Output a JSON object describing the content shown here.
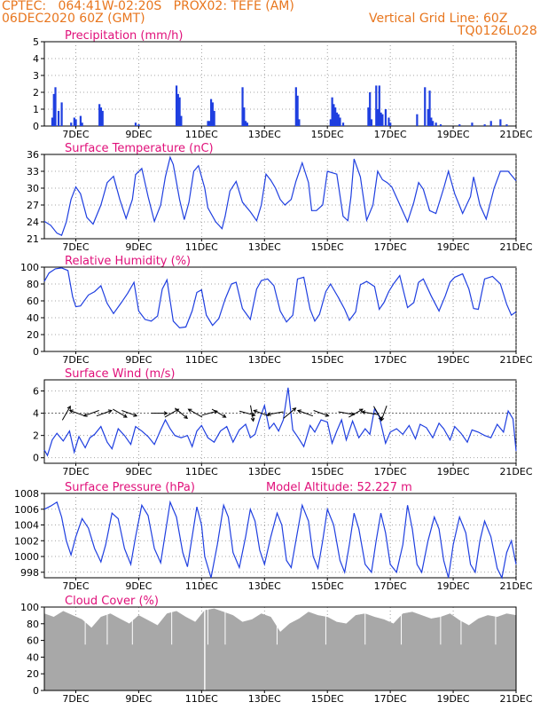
{
  "header": {
    "line1_left": "CPTEC:   064:41W-02:20S   PROX02: TEFE (AM)",
    "line2_left": "06DEC2020 60Z (GMT)",
    "line1_right": "Vertical Grid Line: 60Z",
    "line2_right": "TQ0126L028"
  },
  "colors": {
    "header": "#e8761e",
    "panel_title": "#e0107a",
    "series": "#1f3fe0",
    "cloud": "#a8a8a8",
    "arrows": "#000000"
  },
  "x_axis_labels": [
    "7DEC",
    "9DEC",
    "11DEC",
    "13DEC",
    "15DEC",
    "17DEC",
    "19DEC",
    "21DEC"
  ],
  "chart_data": [
    {
      "id": "precip",
      "type": "bar",
      "title": "Precipitation (mm/h)",
      "ylim": [
        0,
        5
      ],
      "yticks": [
        0,
        1,
        2,
        3,
        4,
        5
      ],
      "x": [
        6.25,
        6.3,
        6.35,
        6.45,
        6.55,
        6.85,
        6.95,
        7.0,
        7.15,
        7.2,
        7.75,
        7.8,
        7.85,
        8.9,
        9.0,
        10.2,
        10.25,
        10.3,
        10.35,
        11.2,
        11.25,
        11.3,
        11.35,
        11.4,
        12.3,
        12.35,
        12.4,
        12.45,
        14.0,
        14.05,
        14.1,
        15.1,
        15.15,
        15.2,
        15.25,
        15.3,
        15.35,
        15.4,
        15.5,
        16.3,
        16.35,
        16.4,
        16.55,
        16.6,
        16.65,
        16.7,
        16.75,
        16.85,
        16.95,
        17.0,
        17.85,
        18.1,
        18.2,
        18.25,
        18.3,
        18.35,
        18.45,
        18.6,
        19.2,
        19.6,
        20.0,
        20.2,
        20.5,
        20.7
      ],
      "values": [
        0.5,
        1.9,
        2.3,
        0.9,
        1.4,
        0.2,
        0.5,
        0.4,
        0.6,
        0.2,
        1.3,
        1.1,
        0.9,
        0.2,
        0.1,
        2.4,
        1.9,
        1.7,
        0.6,
        0.3,
        0.3,
        1.6,
        1.4,
        0.9,
        2.3,
        1.1,
        0.3,
        0.2,
        2.3,
        1.8,
        0.4,
        0.4,
        1.7,
        1.3,
        1.1,
        0.8,
        0.7,
        0.5,
        0.2,
        1.1,
        2.0,
        0.4,
        2.4,
        1.0,
        2.4,
        0.8,
        0.7,
        1.0,
        0.5,
        0.2,
        0.7,
        2.3,
        1.0,
        2.1,
        0.5,
        0.3,
        0.2,
        0.1,
        0.1,
        0.2,
        0.1,
        0.3,
        0.4,
        0.1
      ]
    },
    {
      "id": "temp",
      "type": "line",
      "title": "Surface Temperature (nC)",
      "ylim": [
        21,
        36
      ],
      "yticks": [
        21,
        24,
        27,
        30,
        33,
        36
      ],
      "x": [
        6,
        6.2,
        6.4,
        6.55,
        6.7,
        6.85,
        7.0,
        7.15,
        7.35,
        7.55,
        7.8,
        8.0,
        8.2,
        8.4,
        8.6,
        8.8,
        8.9,
        9.1,
        9.3,
        9.5,
        9.7,
        9.85,
        10.0,
        10.1,
        10.3,
        10.45,
        10.6,
        10.75,
        10.9,
        11.1,
        11.2,
        11.45,
        11.65,
        11.75,
        11.9,
        12.1,
        12.3,
        12.55,
        12.75,
        12.9,
        13.05,
        13.2,
        13.35,
        13.5,
        13.65,
        13.85,
        14.0,
        14.2,
        14.4,
        14.5,
        14.65,
        14.85,
        15.0,
        15.3,
        15.5,
        15.65,
        15.75,
        15.85,
        16.05,
        16.25,
        16.45,
        16.6,
        16.75,
        16.9,
        17.05,
        17.35,
        17.55,
        17.75,
        17.9,
        18.05,
        18.25,
        18.45,
        18.7,
        18.85,
        19.05,
        19.3,
        19.55,
        19.65,
        19.85,
        20.05,
        20.3,
        20.5,
        20.75,
        21.0
      ],
      "values": [
        24.1,
        23.4,
        22.0,
        21.6,
        24.0,
        28.0,
        30.2,
        29.0,
        24.8,
        23.6,
        27.0,
        31.0,
        32.1,
        28.0,
        24.6,
        28.0,
        32.4,
        33.5,
        28.5,
        24.1,
        27.0,
        32.0,
        35.5,
        34.2,
        28.0,
        24.4,
        27.5,
        33.0,
        34.0,
        30.0,
        26.5,
        24.0,
        22.8,
        25.0,
        29.5,
        31.2,
        27.5,
        25.8,
        24.2,
        27.0,
        32.5,
        31.4,
        30.0,
        28.0,
        27.0,
        28.0,
        31.2,
        34.5,
        31.0,
        26.0,
        26.0,
        27.0,
        33.0,
        32.5,
        25.0,
        24.2,
        28.5,
        35.2,
        32.0,
        24.3,
        27.0,
        33.0,
        31.5,
        31.0,
        30.2,
        26.5,
        24.0,
        27.5,
        31.0,
        29.8,
        26.0,
        25.5,
        30.0,
        33.0,
        29.0,
        25.5,
        28.5,
        32.0,
        27.0,
        24.5,
        30.0,
        33.0,
        33.0,
        31.3
      ]
    },
    {
      "id": "rh",
      "type": "line",
      "title": "Relative Humidity (%)",
      "ylim": [
        0,
        100
      ],
      "yticks": [
        0,
        20,
        40,
        60,
        80,
        100
      ],
      "x": [
        6,
        6.15,
        6.35,
        6.55,
        6.75,
        6.9,
        7.0,
        7.15,
        7.4,
        7.6,
        7.8,
        8.0,
        8.2,
        8.45,
        8.65,
        8.85,
        9.0,
        9.2,
        9.4,
        9.6,
        9.75,
        9.9,
        10.1,
        10.3,
        10.5,
        10.7,
        10.85,
        11.0,
        11.15,
        11.35,
        11.55,
        11.75,
        11.95,
        12.1,
        12.3,
        12.55,
        12.75,
        12.9,
        13.1,
        13.3,
        13.5,
        13.7,
        13.9,
        14.05,
        14.25,
        14.45,
        14.6,
        14.75,
        14.95,
        15.1,
        15.35,
        15.55,
        15.7,
        15.9,
        16.05,
        16.25,
        16.5,
        16.65,
        16.8,
        16.95,
        17.1,
        17.3,
        17.55,
        17.75,
        17.9,
        18.05,
        18.3,
        18.55,
        18.75,
        18.9,
        19.05,
        19.3,
        19.5,
        19.65,
        19.8,
        20.0,
        20.25,
        20.5,
        20.7,
        20.85,
        21.0
      ],
      "values": [
        83,
        93,
        98,
        99,
        96,
        65,
        53,
        54,
        67,
        71,
        78,
        57,
        45,
        58,
        69,
        82,
        48,
        38,
        36,
        42,
        74,
        85,
        36,
        28,
        29,
        48,
        70,
        73,
        43,
        31,
        39,
        62,
        80,
        82,
        51,
        38,
        74,
        84,
        86,
        78,
        48,
        35,
        43,
        86,
        88,
        50,
        36,
        44,
        71,
        80,
        64,
        50,
        37,
        47,
        79,
        83,
        77,
        50,
        58,
        71,
        80,
        90,
        52,
        58,
        82,
        86,
        66,
        48,
        66,
        82,
        88,
        92,
        74,
        51,
        50,
        86,
        89,
        80,
        56,
        43,
        47
      ]
    },
    {
      "id": "wind",
      "type": "line",
      "title": "Surface Wind (m/s)",
      "ylim": [
        -0.5,
        7
      ],
      "yticks": [
        0,
        2,
        4,
        6
      ],
      "reference_line": 4,
      "x": [
        6,
        6.1,
        6.25,
        6.4,
        6.6,
        6.8,
        6.95,
        7.1,
        7.3,
        7.45,
        7.6,
        7.8,
        8.0,
        8.15,
        8.35,
        8.55,
        8.75,
        8.9,
        9.1,
        9.3,
        9.5,
        9.7,
        9.85,
        10.0,
        10.15,
        10.35,
        10.55,
        10.7,
        10.85,
        11.0,
        11.2,
        11.4,
        11.6,
        11.8,
        12.0,
        12.2,
        12.4,
        12.55,
        12.7,
        12.85,
        13.0,
        13.15,
        13.3,
        13.45,
        13.6,
        13.75,
        13.9,
        14.05,
        14.25,
        14.45,
        14.6,
        14.8,
        15.0,
        15.15,
        15.3,
        15.45,
        15.6,
        15.8,
        16.0,
        16.2,
        16.35,
        16.5,
        16.65,
        16.85,
        17.0,
        17.2,
        17.4,
        17.6,
        17.8,
        17.95,
        18.15,
        18.35,
        18.55,
        18.7,
        18.9,
        19.05,
        19.25,
        19.45,
        19.6,
        19.8,
        20.0,
        20.2,
        20.4,
        20.6,
        20.75,
        20.9,
        21.0
      ],
      "values": [
        0.7,
        0.2,
        1.6,
        2.2,
        1.5,
        2.4,
        0.5,
        1.9,
        0.9,
        1.8,
        2.1,
        2.8,
        1.4,
        0.8,
        2.6,
        2.0,
        1.2,
        2.8,
        2.4,
        1.9,
        1.2,
        2.5,
        3.4,
        2.6,
        2.0,
        1.8,
        2.0,
        1.0,
        2.4,
        2.9,
        1.8,
        1.4,
        2.4,
        2.8,
        1.4,
        2.5,
        3.0,
        1.8,
        2.1,
        3.5,
        4.7,
        2.6,
        3.1,
        2.4,
        3.4,
        6.3,
        2.5,
        1.9,
        1.0,
        2.9,
        2.3,
        3.4,
        3.2,
        1.3,
        2.4,
        3.4,
        1.6,
        3.3,
        1.8,
        2.6,
        2.1,
        4.4,
        3.7,
        1.3,
        2.3,
        2.6,
        2.1,
        2.9,
        1.7,
        3.0,
        2.7,
        1.8,
        3.1,
        2.6,
        1.6,
        2.8,
        2.2,
        1.4,
        2.5,
        2.3,
        2.0,
        1.8,
        3.0,
        2.3,
        4.2,
        3.5,
        0.6
      ]
    },
    {
      "id": "pres",
      "type": "line",
      "title": "Surface Pressure (hPa)",
      "annotation": "Model Altitude: 52.227 m",
      "ylim": [
        997.3,
        1008
      ],
      "yticks": [
        998,
        1000,
        1002,
        1004,
        1006,
        1008
      ],
      "x": [
        6,
        6.2,
        6.4,
        6.55,
        6.7,
        6.85,
        7.0,
        7.2,
        7.4,
        7.6,
        7.8,
        7.95,
        8.15,
        8.35,
        8.55,
        8.75,
        8.9,
        9.1,
        9.3,
        9.5,
        9.7,
        9.85,
        10.0,
        10.2,
        10.4,
        10.55,
        10.7,
        10.85,
        11.0,
        11.1,
        11.3,
        11.5,
        11.7,
        11.85,
        12.0,
        12.2,
        12.4,
        12.55,
        12.7,
        12.85,
        13.0,
        13.2,
        13.4,
        13.55,
        13.7,
        13.85,
        14.0,
        14.2,
        14.4,
        14.55,
        14.7,
        14.85,
        15.0,
        15.2,
        15.4,
        15.55,
        15.7,
        15.85,
        16.0,
        16.2,
        16.4,
        16.55,
        16.7,
        16.85,
        17.0,
        17.2,
        17.4,
        17.55,
        17.7,
        17.85,
        18.0,
        18.2,
        18.4,
        18.55,
        18.7,
        18.85,
        19.0,
        19.2,
        19.4,
        19.55,
        19.7,
        19.85,
        20.0,
        20.2,
        20.4,
        20.55,
        20.7,
        20.85,
        21.0
      ],
      "values": [
        1006.0,
        1006.4,
        1006.9,
        1005.0,
        1002.0,
        1000.2,
        1002.5,
        1004.8,
        1003.6,
        1001.0,
        999.3,
        1001.5,
        1005.5,
        1004.8,
        1001.0,
        999.0,
        1002.5,
        1006.5,
        1005.2,
        1001.0,
        999.2,
        1003.0,
        1006.9,
        1005.0,
        1000.5,
        998.7,
        1002.5,
        1006.3,
        1004.0,
        1000.0,
        997.3,
        1001.5,
        1006.5,
        1005.0,
        1000.5,
        998.6,
        1002.5,
        1006.0,
        1004.5,
        1000.8,
        999.0,
        1002.5,
        1005.5,
        1004.0,
        999.5,
        998.6,
        1002.0,
        1006.5,
        1004.5,
        1000.0,
        998.5,
        1002.0,
        1006.0,
        1004.0,
        999.5,
        998.0,
        1001.5,
        1005.5,
        1003.5,
        999.0,
        998.0,
        1002.0,
        1005.5,
        1003.0,
        999.0,
        998.0,
        1001.5,
        1006.5,
        1003.5,
        999.0,
        998.0,
        1002.0,
        1005.0,
        1003.5,
        999.5,
        997.3,
        1001.5,
        1005.0,
        1003.0,
        999.0,
        998.0,
        1002.0,
        1004.5,
        1002.5,
        998.5,
        997.3,
        1000.5,
        1002.0,
        999.0
      ]
    },
    {
      "id": "cloud",
      "type": "area",
      "title": "Cloud Cover (%)",
      "ylim": [
        0,
        100
      ],
      "yticks": [
        0,
        20,
        40,
        60,
        80,
        100
      ],
      "x": [
        6,
        6.3,
        6.6,
        6.9,
        7.2,
        7.5,
        7.8,
        8.1,
        8.4,
        8.7,
        9.0,
        9.3,
        9.6,
        9.9,
        10.2,
        10.5,
        10.8,
        11.1,
        11.4,
        11.7,
        12.0,
        12.3,
        12.6,
        12.9,
        13.2,
        13.5,
        13.8,
        14.1,
        14.4,
        14.7,
        15.0,
        15.3,
        15.6,
        15.9,
        16.2,
        16.5,
        16.8,
        17.1,
        17.4,
        17.7,
        18.0,
        18.3,
        18.6,
        18.9,
        19.2,
        19.5,
        19.8,
        20.1,
        20.4,
        20.7,
        21.0
      ],
      "values": [
        92,
        88,
        95,
        90,
        85,
        75,
        88,
        92,
        86,
        80,
        90,
        84,
        78,
        92,
        95,
        88,
        82,
        96,
        98,
        94,
        90,
        82,
        85,
        92,
        88,
        70,
        80,
        86,
        94,
        90,
        88,
        82,
        80,
        90,
        92,
        88,
        85,
        80,
        92,
        94,
        90,
        86,
        88,
        92,
        84,
        78,
        86,
        90,
        88,
        92,
        90
      ]
    }
  ]
}
